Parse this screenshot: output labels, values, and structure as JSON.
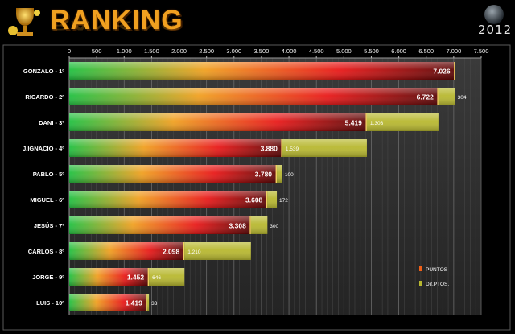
{
  "header": {
    "title": "RANKING",
    "year": "2012"
  },
  "colors": {
    "background": "#000000",
    "plot_background": "#2e2e2e",
    "title": "#f0a020",
    "diff_bar": "#b8b830",
    "points_gradient": [
      "#20c040",
      "#f0a020",
      "#e81818",
      "#5a0606"
    ]
  },
  "chart_data": {
    "type": "bar",
    "orientation": "horizontal",
    "stacked": true,
    "categories": [
      "GONZALO - 1º",
      "RICARDO - 2º",
      "DANI - 3º",
      "J.IGNACIO - 4º",
      "PABLO - 5º",
      "MIGUEL - 6º",
      "JESÚS - 7º",
      "CARLOS - 8º",
      "JORGE - 9º",
      "LUIS - 10º"
    ],
    "series": [
      {
        "name": "PUNTOS",
        "values": [
          7026,
          6722,
          5419,
          3880,
          3780,
          3608,
          3308,
          2098,
          1452,
          1419
        ],
        "labels": [
          "7.026",
          "6.722",
          "5.419",
          "3.880",
          "3.780",
          "3.608",
          "3.308",
          "2.098",
          "1.452",
          "1.419"
        ]
      },
      {
        "name": "Dif.PTOS.",
        "values": [
          0,
          304,
          1303,
          1539,
          100,
          172,
          300,
          1210,
          646,
          33
        ],
        "labels": [
          "",
          "304",
          "1.303",
          "1.539",
          "100",
          "172",
          "300",
          "1.210",
          "646",
          "33"
        ]
      }
    ],
    "xlim": [
      0,
      7500
    ],
    "xticks": [
      0,
      500,
      1000,
      1500,
      2000,
      2500,
      3000,
      3500,
      4000,
      4500,
      5000,
      5500,
      6000,
      6500,
      7000,
      7500
    ],
    "xtick_labels": [
      "0",
      "500",
      "1.000",
      "1.500",
      "2.000",
      "2.500",
      "3.000",
      "3.500",
      "4.000",
      "4.500",
      "5.000",
      "5.500",
      "6.000",
      "6.500",
      "7.000",
      "7.500"
    ],
    "minor_tick_step": 100,
    "grid": true,
    "legend_position": "bottom-right",
    "axis_position": "top"
  }
}
